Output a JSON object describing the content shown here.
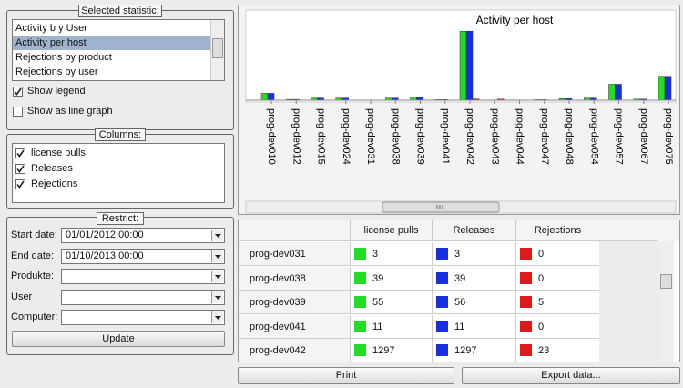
{
  "selected_statistic": {
    "title": "Selected statistic:",
    "items": [
      "Activity b y User",
      "Activity per host",
      "Rejections by product",
      "Rejections by user"
    ],
    "selected": 1
  },
  "options": [
    {
      "label": "Show legend",
      "checked": true
    },
    {
      "label": "Show as line graph",
      "checked": false
    }
  ],
  "columns": {
    "title": "Columns:",
    "checked": [
      true,
      true,
      true
    ]
  },
  "restrict": {
    "title": "Restrict:",
    "fields": [
      {
        "label": "Start date:",
        "value": "01/01/2012 00:00"
      },
      {
        "label": "End date:",
        "value": "01/10/2013 00:00"
      },
      {
        "label": "Produkte:"
      },
      {
        "label": "User"
      },
      {
        "label": "Computer:"
      }
    ],
    "button": "Update"
  },
  "chart_data": {
    "type": "bar",
    "title": "Activity per host",
    "categories": [
      "prog-dev010",
      "prog-dev012",
      "prog-dev015",
      "prog-dev024",
      "prog-dev031",
      "prog-dev038",
      "prog-dev039",
      "prog-dev041",
      "prog-dev042",
      "prog-dev043",
      "prog-dev044",
      "prog-dev047",
      "prog-dev048",
      "prog-dev054",
      "prog-dev057",
      "prog-dev067",
      "prog-dev075"
    ],
    "series": [
      {
        "name": "license pulls",
        "color": "#22dd22",
        "values": [
          130,
          15,
          40,
          40,
          3,
          39,
          55,
          11,
          1297,
          5,
          5,
          10,
          30,
          40,
          300,
          20,
          450
        ]
      },
      {
        "name": "Releases",
        "color": "#1a2ee0",
        "values": [
          130,
          15,
          40,
          40,
          3,
          39,
          56,
          11,
          1297,
          5,
          5,
          10,
          30,
          40,
          300,
          20,
          450
        ]
      },
      {
        "name": "Rejections",
        "color": "#e01a1a",
        "values": [
          0,
          0,
          0,
          0,
          0,
          0,
          5,
          0,
          23,
          20,
          0,
          0,
          0,
          0,
          0,
          0,
          0
        ]
      }
    ],
    "ylim": [
      0,
      1300
    ]
  },
  "table": {
    "rows": [
      {
        "host": "prog-dev031",
        "cells": [
          3,
          3,
          0
        ]
      },
      {
        "host": "prog-dev038",
        "cells": [
          39,
          39,
          0
        ]
      },
      {
        "host": "prog-dev039",
        "cells": [
          55,
          56,
          5
        ]
      },
      {
        "host": "prog-dev041",
        "cells": [
          11,
          11,
          0
        ]
      },
      {
        "host": "prog-dev042",
        "cells": [
          1297,
          1297,
          23
        ]
      }
    ]
  },
  "buttons": [
    "Print",
    "Export data..."
  ]
}
